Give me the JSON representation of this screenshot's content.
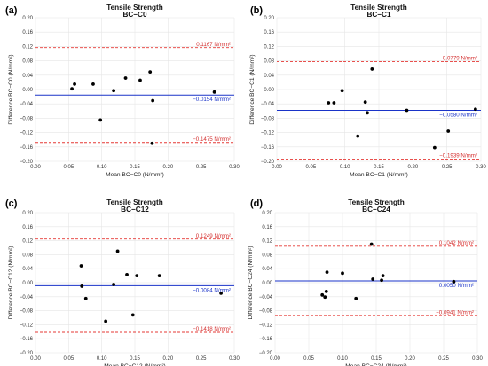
{
  "chart_data": [
    {
      "panel_label": "(a)",
      "type": "scatter",
      "title": "Tensile Strength",
      "subtitle": "BC−C0",
      "xlabel": "Mean BC−C0 (N/mm²)",
      "ylabel": "Difference BC−C0 (N/mm²)",
      "xlim": [
        0,
        0.3
      ],
      "ylim": [
        -0.2,
        0.2
      ],
      "x_ticks": [
        "0.00",
        "0.05",
        "0.10",
        "0.15",
        "0.20",
        "0.25",
        "0.30"
      ],
      "y_ticks": [
        "0.20",
        "0.16",
        "0.12",
        "0.08",
        "0.04",
        "0.00",
        "−0.04",
        "−0.08",
        "−0.12",
        "−0.16",
        "−0.20"
      ],
      "mean_line": {
        "value": -0.0154,
        "label": "−0.0154 N/mm²",
        "color": "#1a33c8"
      },
      "upper_loa": {
        "value": 0.1167,
        "label": "0.1167 N/mm²",
        "color": "#e53935"
      },
      "lower_loa": {
        "value": -0.1475,
        "label": "−0.1475 N/mm²",
        "color": "#e53935"
      },
      "points": [
        {
          "x": 0.055,
          "y": 0.002
        },
        {
          "x": 0.059,
          "y": 0.015
        },
        {
          "x": 0.087,
          "y": 0.015
        },
        {
          "x": 0.098,
          "y": -0.085
        },
        {
          "x": 0.118,
          "y": -0.003
        },
        {
          "x": 0.136,
          "y": 0.032
        },
        {
          "x": 0.158,
          "y": 0.026
        },
        {
          "x": 0.173,
          "y": 0.049
        },
        {
          "x": 0.177,
          "y": -0.031
        },
        {
          "x": 0.176,
          "y": -0.15
        },
        {
          "x": 0.27,
          "y": -0.007
        }
      ]
    },
    {
      "panel_label": "(b)",
      "type": "scatter",
      "title": "Tensile Strength",
      "subtitle": "BC−C1",
      "xlabel": "Mean BC−C1 (N/mm²)",
      "ylabel": "Difference BC−C1 (N/mm²)",
      "xlim": [
        0,
        0.3
      ],
      "ylim": [
        -0.2,
        0.2
      ],
      "x_ticks": [
        "0.00",
        "0.05",
        "0.10",
        "0.15",
        "0.20",
        "0.25",
        "0.30"
      ],
      "y_ticks": [
        "0.20",
        "0.16",
        "0.12",
        "0.08",
        "0.04",
        "0.00",
        "−0.04",
        "−0.08",
        "−0.12",
        "−0.16",
        "−0.20"
      ],
      "mean_line": {
        "value": -0.058,
        "label": "−0.0580 N/mm²",
        "color": "#1a33c8"
      },
      "upper_loa": {
        "value": 0.0779,
        "label": "0.0779 N/mm²",
        "color": "#e53935"
      },
      "lower_loa": {
        "value": -0.1939,
        "label": "−0.1939 N/mm²",
        "color": "#e53935"
      },
      "points": [
        {
          "x": 0.076,
          "y": -0.037
        },
        {
          "x": 0.084,
          "y": -0.037
        },
        {
          "x": 0.096,
          "y": -0.003
        },
        {
          "x": 0.119,
          "y": -0.13
        },
        {
          "x": 0.13,
          "y": -0.035
        },
        {
          "x": 0.133,
          "y": -0.065
        },
        {
          "x": 0.14,
          "y": 0.057
        },
        {
          "x": 0.191,
          "y": -0.058
        },
        {
          "x": 0.232,
          "y": -0.162
        },
        {
          "x": 0.252,
          "y": -0.116
        },
        {
          "x": 0.292,
          "y": -0.055
        }
      ]
    },
    {
      "panel_label": "(c)",
      "type": "scatter",
      "title": "Tensile Strength",
      "subtitle": "BC−C12",
      "xlabel": "Mean BC−C12 (N/mm²)",
      "ylabel": "Difference BC−C12 (N/mm²)",
      "xlim": [
        0,
        0.3
      ],
      "ylim": [
        -0.2,
        0.2
      ],
      "x_ticks": [
        "0.00",
        "0.05",
        "0.10",
        "0.15",
        "0.20",
        "0.25",
        "0.30"
      ],
      "y_ticks": [
        "0.20",
        "0.16",
        "0.12",
        "0.08",
        "0.04",
        "0.00",
        "−0.04",
        "−0.08",
        "−0.12",
        "−0.16",
        "−0.20"
      ],
      "mean_line": {
        "value": -0.0084,
        "label": "−0.0084 N/mm²",
        "color": "#1a33c8"
      },
      "upper_loa": {
        "value": 0.1249,
        "label": "0.1249 N/mm²",
        "color": "#e53935"
      },
      "lower_loa": {
        "value": -0.1418,
        "label": "−0.1418 N/mm²",
        "color": "#e53935"
      },
      "points": [
        {
          "x": 0.069,
          "y": 0.048
        },
        {
          "x": 0.07,
          "y": -0.01
        },
        {
          "x": 0.076,
          "y": -0.045
        },
        {
          "x": 0.106,
          "y": -0.11
        },
        {
          "x": 0.118,
          "y": -0.005
        },
        {
          "x": 0.124,
          "y": 0.09
        },
        {
          "x": 0.138,
          "y": 0.023
        },
        {
          "x": 0.147,
          "y": -0.092
        },
        {
          "x": 0.153,
          "y": 0.02
        },
        {
          "x": 0.187,
          "y": 0.02
        },
        {
          "x": 0.28,
          "y": -0.03
        }
      ]
    },
    {
      "panel_label": "(d)",
      "type": "scatter",
      "title": "Tensile Strength",
      "subtitle": "BC−C24",
      "xlabel": "Mean BC−C24 (N/mm²)",
      "ylabel": "Difference BC−C24 (N/mm²)",
      "xlim": [
        0,
        0.3
      ],
      "ylim": [
        -0.2,
        0.2
      ],
      "x_ticks": [
        "0.00",
        "0.05",
        "0.10",
        "0.15",
        "0.20",
        "0.25",
        "0.30"
      ],
      "y_ticks": [
        "0.20",
        "0.16",
        "0.12",
        "0.08",
        "0.04",
        "0.00",
        "−0.04",
        "−0.08",
        "−0.12",
        "−0.16",
        "−0.20"
      ],
      "mean_line": {
        "value": 0.005,
        "label": "0.0050 N/mm²",
        "color": "#1a33c8"
      },
      "upper_loa": {
        "value": 0.1042,
        "label": "0.1042 N/mm²",
        "color": "#e53935"
      },
      "lower_loa": {
        "value": -0.0941,
        "label": "−0.0941 N/mm²",
        "color": "#e53935"
      },
      "points": [
        {
          "x": 0.07,
          "y": -0.035
        },
        {
          "x": 0.074,
          "y": -0.041
        },
        {
          "x": 0.076,
          "y": -0.025
        },
        {
          "x": 0.077,
          "y": 0.03
        },
        {
          "x": 0.1,
          "y": 0.027
        },
        {
          "x": 0.12,
          "y": -0.045
        },
        {
          "x": 0.143,
          "y": 0.11
        },
        {
          "x": 0.145,
          "y": 0.01
        },
        {
          "x": 0.158,
          "y": 0.007
        },
        {
          "x": 0.16,
          "y": 0.02
        },
        {
          "x": 0.265,
          "y": 0.003
        }
      ]
    }
  ]
}
